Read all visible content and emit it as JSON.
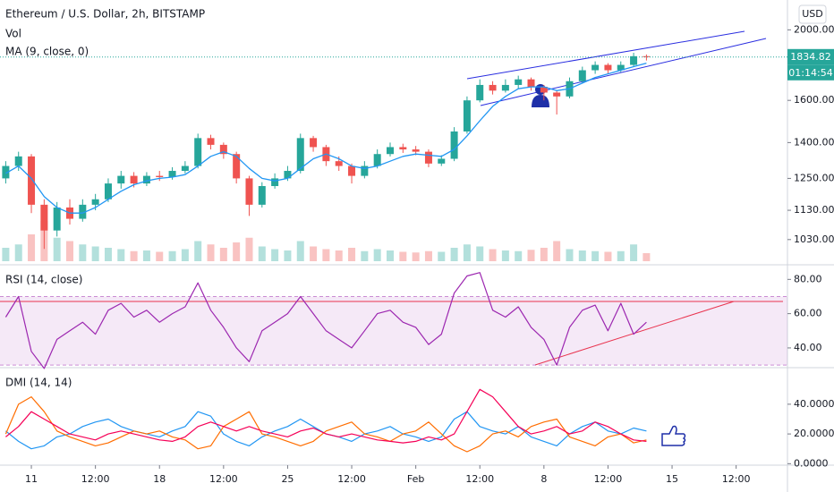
{
  "chart_data": [
    {
      "type": "candlestick",
      "title": "Ethereum / U.S. Dollar, 2h, BITSTAMP",
      "volume_label": "Vol",
      "currency": "USD",
      "countdown": "01:14:54",
      "last_price": 1834.82,
      "log_scale": true,
      "ylim": [
        951,
        2198
      ],
      "yticks": [
        {
          "value": 1030,
          "label": "1030.00"
        },
        {
          "value": 1130,
          "label": "1130.00"
        },
        {
          "value": 1250,
          "label": "1250.00"
        },
        {
          "value": 1400,
          "label": "1400.00"
        },
        {
          "value": 1600,
          "label": "1600.00"
        },
        {
          "value": 2000,
          "label": "2000.00"
        }
      ],
      "up_color": "#26a69a",
      "down_color": "#ef5350",
      "open": [
        1250,
        1300,
        1340,
        1150,
        1060,
        1140,
        1100,
        1150,
        1170,
        1230,
        1260,
        1230,
        1260,
        1255,
        1280,
        1300,
        1420,
        1390,
        1350,
        1250,
        1150,
        1220,
        1250,
        1280,
        1420,
        1380,
        1320,
        1300,
        1260,
        1300,
        1350,
        1380,
        1370,
        1360,
        1310,
        1330,
        1450,
        1600,
        1680,
        1650,
        1680,
        1710,
        1670,
        1640,
        1620,
        1700,
        1760,
        1790,
        1760,
        1790,
        1840,
        null,
        null,
        null,
        null,
        null,
        null,
        null,
        null,
        null,
        null
      ],
      "high": [
        1320,
        1360,
        1350,
        1170,
        1160,
        1170,
        1170,
        1190,
        1250,
        1280,
        1275,
        1275,
        1280,
        1295,
        1320,
        1440,
        1435,
        1400,
        1360,
        1260,
        1235,
        1270,
        1300,
        1440,
        1430,
        1390,
        1340,
        1310,
        1320,
        1370,
        1400,
        1395,
        1385,
        1370,
        1345,
        1470,
        1620,
        1710,
        1700,
        1710,
        1730,
        1720,
        1680,
        1650,
        1720,
        1780,
        1810,
        1800,
        1810,
        1860,
        1850,
        null,
        null,
        null,
        null,
        null,
        null,
        null,
        null,
        null,
        null
      ],
      "low": [
        1230,
        1280,
        1120,
        1000,
        1040,
        1080,
        1090,
        1130,
        1160,
        1210,
        1215,
        1220,
        1240,
        1245,
        1270,
        1290,
        1370,
        1330,
        1230,
        1110,
        1140,
        1210,
        1240,
        1270,
        1360,
        1300,
        1280,
        1230,
        1250,
        1290,
        1340,
        1355,
        1345,
        1295,
        1300,
        1320,
        1440,
        1590,
        1630,
        1640,
        1660,
        1650,
        1600,
        1530,
        1610,
        1690,
        1740,
        1740,
        1750,
        1780,
        1815,
        null,
        null,
        null,
        null,
        null,
        null,
        null,
        null,
        null,
        null
      ],
      "close": [
        1300,
        1340,
        1150,
        1060,
        1140,
        1100,
        1150,
        1170,
        1230,
        1260,
        1230,
        1260,
        1255,
        1280,
        1300,
        1420,
        1390,
        1350,
        1250,
        1150,
        1220,
        1250,
        1280,
        1420,
        1380,
        1320,
        1300,
        1260,
        1300,
        1350,
        1380,
        1370,
        1360,
        1310,
        1330,
        1450,
        1600,
        1680,
        1650,
        1680,
        1710,
        1670,
        1640,
        1620,
        1700,
        1760,
        1790,
        1760,
        1790,
        1840,
        1835,
        null,
        null,
        null,
        null,
        null,
        null,
        null,
        null,
        null,
        null
      ],
      "volume": [
        20,
        25,
        40,
        60,
        35,
        30,
        25,
        22,
        20,
        18,
        15,
        16,
        14,
        15,
        18,
        30,
        25,
        20,
        28,
        35,
        22,
        18,
        16,
        30,
        22,
        18,
        16,
        20,
        15,
        18,
        16,
        14,
        13,
        15,
        14,
        20,
        25,
        22,
        18,
        16,
        15,
        17,
        20,
        30,
        18,
        16,
        15,
        14,
        15,
        25,
        12,
        null,
        null,
        null,
        null,
        null,
        null,
        null,
        null,
        null,
        null
      ],
      "ma": {
        "label": "MA (9, close, 0)",
        "color": "#2196f3",
        "values": [
          1270,
          1300,
          1250,
          1180,
          1140,
          1120,
          1120,
          1140,
          1170,
          1200,
          1225,
          1240,
          1250,
          1255,
          1265,
          1300,
          1340,
          1360,
          1340,
          1290,
          1250,
          1240,
          1250,
          1290,
          1330,
          1350,
          1330,
          1300,
          1290,
          1300,
          1320,
          1340,
          1350,
          1345,
          1340,
          1370,
          1430,
          1500,
          1570,
          1620,
          1660,
          1670,
          1670,
          1650,
          1660,
          1690,
          1720,
          1740,
          1760,
          1780,
          1800,
          null,
          null,
          null,
          null,
          null,
          null,
          null,
          null,
          null,
          null
        ]
      }
    },
    {
      "type": "line",
      "title": "RSI (14, close)",
      "ylim": [
        29,
        88
      ],
      "yticks": [
        {
          "value": 40,
          "label": "40.00"
        },
        {
          "value": 60,
          "label": "60.00"
        },
        {
          "value": 80,
          "label": "80.00"
        }
      ],
      "band": [
        30,
        70
      ],
      "color": "#9c27b0",
      "values": [
        58,
        70,
        38,
        28,
        45,
        50,
        55,
        48,
        62,
        66,
        58,
        62,
        55,
        60,
        64,
        78,
        62,
        52,
        40,
        32,
        50,
        55,
        60,
        70,
        60,
        50,
        45,
        40,
        50,
        60,
        62,
        55,
        52,
        42,
        48,
        72,
        82,
        84,
        62,
        58,
        64,
        52,
        45,
        30,
        52,
        62,
        65,
        50,
        66,
        48,
        55,
        null,
        null,
        null,
        null,
        null,
        null,
        null,
        null,
        null,
        null
      ]
    },
    {
      "type": "line",
      "title": "DMI (14, 14)",
      "ylim": [
        -1,
        64
      ],
      "yticks": [
        {
          "value": 0,
          "label": "0.0000"
        },
        {
          "value": 20,
          "label": "20.0000"
        },
        {
          "value": 40,
          "label": "40.0000"
        }
      ],
      "categories": [
        null,
        null,
        "11",
        null,
        null,
        null,
        null,
        "12:00",
        null,
        null,
        null,
        null,
        "18",
        null,
        null,
        null,
        null,
        "12:00",
        null,
        null,
        null,
        null,
        "25",
        null,
        null,
        null,
        null,
        "12:00",
        null,
        null,
        null,
        null,
        "Feb",
        null,
        null,
        null,
        null,
        "12:00",
        null,
        null,
        null,
        null,
        "8",
        null,
        null,
        null,
        null,
        "12:00",
        null,
        null,
        null,
        null,
        "15",
        null,
        null,
        null,
        null,
        "12:00",
        null,
        null,
        null
      ],
      "series": [
        {
          "color": "#2196f3",
          "values": [
            22,
            15,
            10,
            12,
            18,
            20,
            25,
            28,
            30,
            25,
            22,
            20,
            18,
            22,
            25,
            35,
            32,
            20,
            15,
            12,
            18,
            22,
            25,
            30,
            25,
            20,
            18,
            15,
            20,
            22,
            25,
            20,
            18,
            15,
            18,
            30,
            35,
            25,
            22,
            20,
            25,
            18,
            15,
            12,
            20,
            25,
            28,
            22,
            20,
            24,
            22,
            null,
            null,
            null,
            null,
            null,
            null,
            null,
            null,
            null,
            null
          ]
        },
        {
          "color": "#ff6d00",
          "values": [
            20,
            40,
            45,
            35,
            22,
            18,
            15,
            12,
            14,
            18,
            22,
            20,
            22,
            18,
            16,
            10,
            12,
            25,
            30,
            35,
            20,
            18,
            15,
            12,
            15,
            22,
            25,
            28,
            20,
            18,
            15,
            20,
            22,
            28,
            20,
            12,
            8,
            12,
            20,
            22,
            18,
            25,
            28,
            30,
            18,
            15,
            12,
            18,
            20,
            14,
            16,
            null,
            null,
            null,
            null,
            null,
            null,
            null,
            null,
            null,
            null
          ]
        },
        {
          "color": "#f50057",
          "values": [
            18,
            25,
            35,
            30,
            25,
            20,
            18,
            16,
            20,
            22,
            20,
            18,
            16,
            15,
            18,
            25,
            28,
            25,
            22,
            25,
            22,
            20,
            18,
            22,
            24,
            20,
            18,
            20,
            18,
            16,
            15,
            14,
            15,
            18,
            16,
            20,
            35,
            50,
            45,
            35,
            25,
            20,
            22,
            25,
            20,
            22,
            28,
            25,
            20,
            16,
            15,
            null,
            null,
            null,
            null,
            null,
            null,
            null,
            null,
            null,
            null
          ]
        }
      ]
    }
  ]
}
